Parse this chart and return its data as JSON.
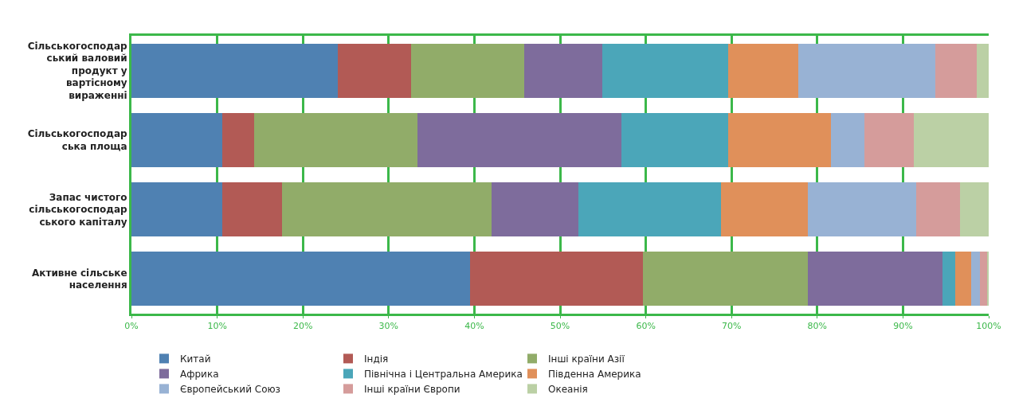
{
  "chart_data": {
    "type": "bar",
    "orientation": "horizontal",
    "stacked": true,
    "categories": [
      "Сільськогосподар\nський валовий\nпродукт у\nвартісному\nвираженні",
      "Сільськогосподар\nська площа",
      "Запас чистого\nсільськогосподар\nського капіталу",
      "Активне сільське\nнаселення"
    ],
    "series": [
      {
        "name": "Китай",
        "color": "#4f81b2",
        "values": [
          24.1,
          10.6,
          10.6,
          39.5
        ]
      },
      {
        "name": "Індія",
        "color": "#b25a55",
        "values": [
          8.5,
          3.7,
          7.0,
          20.2
        ]
      },
      {
        "name": "Інші країни Азії",
        "color": "#91ac69",
        "values": [
          13.2,
          19.1,
          24.4,
          19.2
        ]
      },
      {
        "name": "Африка",
        "color": "#7e6c9c",
        "values": [
          9.1,
          23.8,
          10.1,
          15.7
        ]
      },
      {
        "name": "Північна і Центральна Америка",
        "color": "#4ba6b9",
        "values": [
          14.7,
          12.4,
          16.7,
          1.5
        ]
      },
      {
        "name": "Південна Америка",
        "color": "#e0905a",
        "values": [
          8.2,
          12.0,
          10.1,
          1.9
        ]
      },
      {
        "name": "Європейський Союз",
        "color": "#98b2d4",
        "values": [
          16.0,
          3.9,
          12.6,
          1.0
        ]
      },
      {
        "name": "Інші країни Європи",
        "color": "#d59c9b",
        "values": [
          4.8,
          5.8,
          5.2,
          0.8
        ]
      },
      {
        "name": "Океанія",
        "color": "#bbd0a5",
        "values": [
          1.4,
          8.7,
          3.3,
          0.2
        ]
      }
    ],
    "xlim": [
      0,
      100
    ],
    "xticks": [
      {
        "value": 0,
        "label": "0%"
      },
      {
        "value": 10,
        "label": "10%"
      },
      {
        "value": 20,
        "label": "20%"
      },
      {
        "value": 30,
        "label": "30%"
      },
      {
        "value": 40,
        "label": "40%"
      },
      {
        "value": 50,
        "label": "50%"
      },
      {
        "value": 60,
        "label": "60%"
      },
      {
        "value": 70,
        "label": "70%"
      },
      {
        "value": 80,
        "label": "80%"
      },
      {
        "value": 90,
        "label": "90%"
      },
      {
        "value": 100,
        "label": "100%"
      }
    ],
    "grid": "x",
    "legend": "bottom"
  }
}
